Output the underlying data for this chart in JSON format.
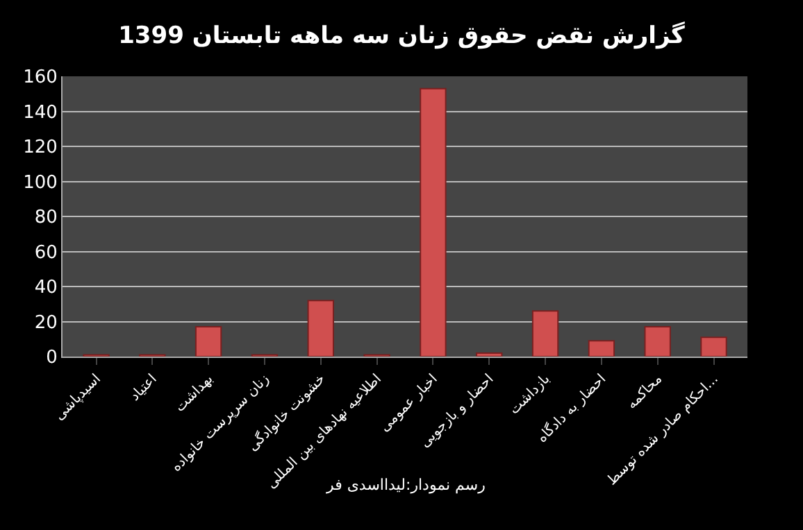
{
  "chart_data": {
    "type": "bar",
    "title": "گزارش نقض حقوق زنان سه ماهه تابستان 1399",
    "categories": [
      "اسیدپاشی",
      "اعتیاد",
      "بهداشت",
      "زنان سرپرست خانواده",
      "خشونت خانوادگی",
      "اطلاعیه نهادهای بین المللی",
      "اخبار عمومی",
      "احضار و بازجویی",
      "بازداشت",
      "احضار به دادگاه",
      "محاکمه",
      "احکام صادر شده توسط..."
    ],
    "values": [
      1,
      1,
      17,
      1,
      32,
      1,
      153,
      2,
      26,
      9,
      17,
      11
    ],
    "color": "#d04f4f",
    "ylim": [
      0,
      160
    ],
    "yticks": [
      0,
      20,
      40,
      60,
      80,
      100,
      120,
      140,
      160
    ],
    "grid": "y",
    "legend": false,
    "annotations": [
      "رسم نمودار:لیدااسدی فر"
    ]
  }
}
